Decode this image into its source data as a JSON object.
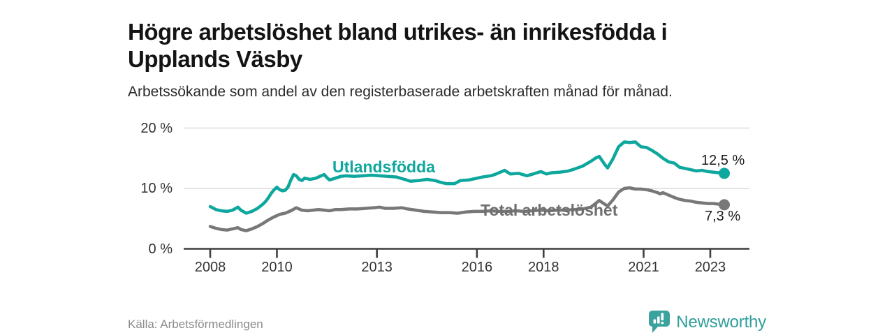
{
  "header": {
    "title": "Högre arbetslöshet bland utrikes- än inrikesfödda i Upplands Väsby",
    "subtitle": "Arbetssökande som andel av den registerbaserade arbetskraften månad för månad."
  },
  "footer": {
    "source": "Källa: Arbetsförmedlingen",
    "brand_name": "Newsworthy",
    "brand_icon": "newsworthy-bar-chart-speech-bubble-icon"
  },
  "colors": {
    "accent_teal": "#0ea79d",
    "series_gray": "#787878",
    "gray_label": "#6f6f6f",
    "value_label": "#1c1c1c",
    "gridline": "#dcdcdc",
    "axis": "#3f3f3f",
    "brand_teal": "#3ba39d"
  },
  "chart_data": {
    "type": "line",
    "title": "Högre arbetslöshet bland utrikes- än inrikesfödda i Upplands Väsby",
    "subtitle": "Arbetssökande som andel av den registerbaserade arbetskraften månad för månad.",
    "grid": "horizontal",
    "legend": "inline-labels",
    "x_domain": [
      2008,
      2023.5
    ],
    "y_domain": [
      0,
      20
    ],
    "x_ticks": [
      2008,
      2010,
      2013,
      2016,
      2018,
      2021,
      2023
    ],
    "x_tick_labels": [
      "2008",
      "2010",
      "2013",
      "2016",
      "2018",
      "2021",
      "2023"
    ],
    "y_ticks": [
      0,
      10,
      20
    ],
    "y_tick_labels": [
      "0 %",
      "10 %",
      "20 %"
    ],
    "series": [
      {
        "name": "Utlandsfödda",
        "color": "#0ea79d",
        "label_color": "#0ea79d",
        "end_label": "12,5 %",
        "end_value": 12.5,
        "points": [
          [
            2008.0,
            7.0
          ],
          [
            2008.17,
            6.5
          ],
          [
            2008.33,
            6.3
          ],
          [
            2008.5,
            6.2
          ],
          [
            2008.67,
            6.4
          ],
          [
            2008.83,
            6.9
          ],
          [
            2008.92,
            6.4
          ],
          [
            2009.08,
            5.9
          ],
          [
            2009.25,
            6.2
          ],
          [
            2009.42,
            6.7
          ],
          [
            2009.58,
            7.4
          ],
          [
            2009.67,
            7.9
          ],
          [
            2009.75,
            8.5
          ],
          [
            2009.83,
            9.2
          ],
          [
            2009.92,
            9.8
          ],
          [
            2010.0,
            10.2
          ],
          [
            2010.08,
            9.8
          ],
          [
            2010.17,
            9.6
          ],
          [
            2010.25,
            9.7
          ],
          [
            2010.33,
            10.2
          ],
          [
            2010.42,
            11.4
          ],
          [
            2010.5,
            12.3
          ],
          [
            2010.58,
            12.1
          ],
          [
            2010.67,
            11.5
          ],
          [
            2010.75,
            11.3
          ],
          [
            2010.83,
            11.7
          ],
          [
            2010.92,
            11.6
          ],
          [
            2011.0,
            11.5
          ],
          [
            2011.17,
            11.7
          ],
          [
            2011.33,
            12.1
          ],
          [
            2011.42,
            12.3
          ],
          [
            2011.5,
            11.8
          ],
          [
            2011.58,
            11.4
          ],
          [
            2011.75,
            11.7
          ],
          [
            2011.92,
            12.0
          ],
          [
            2012.08,
            12.1
          ],
          [
            2012.33,
            12.0
          ],
          [
            2012.58,
            12.1
          ],
          [
            2012.83,
            12.2
          ],
          [
            2013.08,
            12.1
          ],
          [
            2013.33,
            12.0
          ],
          [
            2013.58,
            11.9
          ],
          [
            2013.83,
            11.5
          ],
          [
            2014.0,
            11.2
          ],
          [
            2014.25,
            11.3
          ],
          [
            2014.5,
            11.5
          ],
          [
            2014.75,
            11.3
          ],
          [
            2014.92,
            11.0
          ],
          [
            2015.08,
            10.8
          ],
          [
            2015.33,
            10.8
          ],
          [
            2015.5,
            11.3
          ],
          [
            2015.75,
            11.4
          ],
          [
            2015.92,
            11.6
          ],
          [
            2016.17,
            11.9
          ],
          [
            2016.42,
            12.1
          ],
          [
            2016.58,
            12.4
          ],
          [
            2016.83,
            13.0
          ],
          [
            2017.0,
            12.4
          ],
          [
            2017.25,
            12.5
          ],
          [
            2017.5,
            12.1
          ],
          [
            2017.75,
            12.5
          ],
          [
            2017.92,
            12.8
          ],
          [
            2018.08,
            12.4
          ],
          [
            2018.25,
            12.6
          ],
          [
            2018.5,
            12.7
          ],
          [
            2018.75,
            12.9
          ],
          [
            2018.92,
            13.2
          ],
          [
            2019.17,
            13.7
          ],
          [
            2019.42,
            14.5
          ],
          [
            2019.58,
            15.1
          ],
          [
            2019.67,
            15.3
          ],
          [
            2019.83,
            14.0
          ],
          [
            2019.92,
            13.4
          ],
          [
            2020.08,
            14.9
          ],
          [
            2020.25,
            16.9
          ],
          [
            2020.42,
            17.7
          ],
          [
            2020.58,
            17.6
          ],
          [
            2020.75,
            17.7
          ],
          [
            2020.92,
            16.9
          ],
          [
            2021.08,
            16.8
          ],
          [
            2021.25,
            16.3
          ],
          [
            2021.42,
            15.7
          ],
          [
            2021.58,
            15.0
          ],
          [
            2021.75,
            14.4
          ],
          [
            2021.92,
            14.2
          ],
          [
            2022.08,
            13.5
          ],
          [
            2022.25,
            13.3
          ],
          [
            2022.42,
            13.1
          ],
          [
            2022.58,
            12.9
          ],
          [
            2022.75,
            13.0
          ],
          [
            2022.92,
            12.8
          ],
          [
            2023.08,
            12.7
          ],
          [
            2023.25,
            12.6
          ],
          [
            2023.42,
            12.5
          ]
        ]
      },
      {
        "name": "Total arbetslöshet",
        "color": "#787878",
        "label_color": "#6f6f6f",
        "end_label": "7,3 %",
        "end_value": 7.3,
        "points": [
          [
            2008.0,
            3.7
          ],
          [
            2008.17,
            3.4
          ],
          [
            2008.33,
            3.2
          ],
          [
            2008.5,
            3.1
          ],
          [
            2008.67,
            3.3
          ],
          [
            2008.83,
            3.5
          ],
          [
            2008.92,
            3.2
          ],
          [
            2009.08,
            3.0
          ],
          [
            2009.25,
            3.3
          ],
          [
            2009.42,
            3.7
          ],
          [
            2009.58,
            4.2
          ],
          [
            2009.75,
            4.8
          ],
          [
            2009.92,
            5.3
          ],
          [
            2010.08,
            5.7
          ],
          [
            2010.25,
            5.9
          ],
          [
            2010.42,
            6.3
          ],
          [
            2010.58,
            6.8
          ],
          [
            2010.75,
            6.4
          ],
          [
            2010.92,
            6.3
          ],
          [
            2011.08,
            6.4
          ],
          [
            2011.25,
            6.5
          ],
          [
            2011.42,
            6.4
          ],
          [
            2011.58,
            6.3
          ],
          [
            2011.75,
            6.5
          ],
          [
            2011.92,
            6.5
          ],
          [
            2012.17,
            6.6
          ],
          [
            2012.42,
            6.6
          ],
          [
            2012.67,
            6.7
          ],
          [
            2012.92,
            6.8
          ],
          [
            2013.08,
            6.9
          ],
          [
            2013.25,
            6.7
          ],
          [
            2013.5,
            6.7
          ],
          [
            2013.75,
            6.8
          ],
          [
            2013.92,
            6.6
          ],
          [
            2014.17,
            6.4
          ],
          [
            2014.42,
            6.2
          ],
          [
            2014.67,
            6.1
          ],
          [
            2014.92,
            6.0
          ],
          [
            2015.17,
            6.0
          ],
          [
            2015.42,
            5.9
          ],
          [
            2015.67,
            6.1
          ],
          [
            2015.92,
            6.2
          ],
          [
            2016.17,
            6.2
          ],
          [
            2016.42,
            6.3
          ],
          [
            2016.67,
            6.2
          ],
          [
            2016.92,
            6.2
          ],
          [
            2017.17,
            6.3
          ],
          [
            2017.42,
            6.2
          ],
          [
            2017.67,
            6.3
          ],
          [
            2017.92,
            6.4
          ],
          [
            2018.17,
            6.3
          ],
          [
            2018.42,
            6.4
          ],
          [
            2018.67,
            6.4
          ],
          [
            2018.92,
            6.5
          ],
          [
            2019.17,
            6.6
          ],
          [
            2019.42,
            6.9
          ],
          [
            2019.58,
            7.6
          ],
          [
            2019.67,
            8.0
          ],
          [
            2019.83,
            7.4
          ],
          [
            2019.92,
            7.1
          ],
          [
            2020.08,
            8.1
          ],
          [
            2020.25,
            9.4
          ],
          [
            2020.42,
            10.0
          ],
          [
            2020.58,
            10.1
          ],
          [
            2020.75,
            9.9
          ],
          [
            2020.92,
            9.9
          ],
          [
            2021.08,
            9.8
          ],
          [
            2021.25,
            9.6
          ],
          [
            2021.42,
            9.3
          ],
          [
            2021.5,
            9.1
          ],
          [
            2021.58,
            9.3
          ],
          [
            2021.75,
            8.9
          ],
          [
            2021.92,
            8.5
          ],
          [
            2022.08,
            8.2
          ],
          [
            2022.25,
            8.0
          ],
          [
            2022.42,
            7.9
          ],
          [
            2022.58,
            7.7
          ],
          [
            2022.75,
            7.6
          ],
          [
            2022.92,
            7.5
          ],
          [
            2023.08,
            7.5
          ],
          [
            2023.25,
            7.4
          ],
          [
            2023.42,
            7.3
          ]
        ]
      }
    ]
  }
}
